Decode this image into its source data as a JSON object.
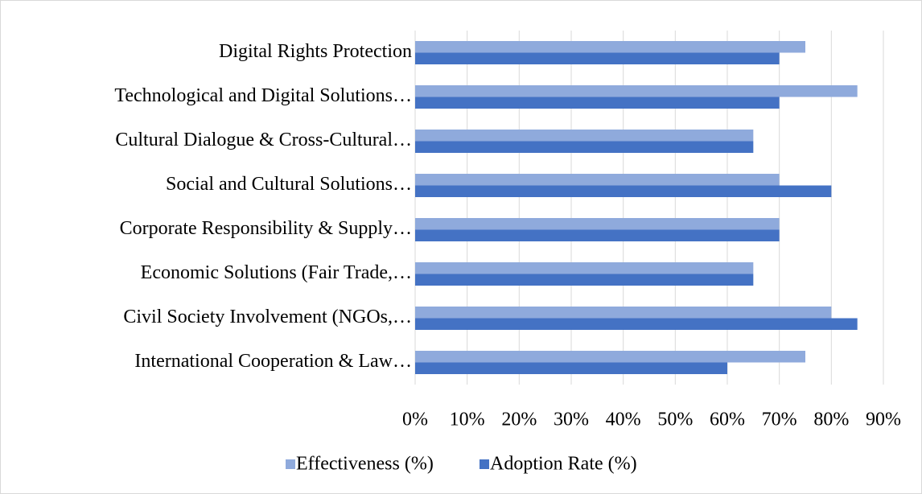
{
  "chart_data": {
    "type": "bar",
    "orientation": "horizontal",
    "categories": [
      "Digital Rights Protection",
      "Technological and Digital Solutions…",
      "Cultural Dialogue & Cross-Cultural…",
      "Social and Cultural Solutions…",
      "Corporate Responsibility & Supply…",
      "Economic Solutions (Fair Trade,…",
      "Civil Society Involvement (NGOs,…",
      "International Cooperation & Law…"
    ],
    "series": [
      {
        "name": "Effectiveness (%)",
        "color": "#8faadc",
        "values": [
          75,
          85,
          65,
          70,
          70,
          65,
          80,
          75
        ]
      },
      {
        "name": "Adoption Rate (%)",
        "color": "#4472c4",
        "values": [
          70,
          70,
          65,
          80,
          70,
          65,
          85,
          60
        ]
      }
    ],
    "xlim": [
      0,
      90
    ],
    "xticks": [
      {
        "value": 0,
        "label": "0%"
      },
      {
        "value": 10,
        "label": "10%"
      },
      {
        "value": 20,
        "label": "20%"
      },
      {
        "value": 30,
        "label": "30%"
      },
      {
        "value": 40,
        "label": "40%"
      },
      {
        "value": 50,
        "label": "50%"
      },
      {
        "value": 60,
        "label": "60%"
      },
      {
        "value": 70,
        "label": "70%"
      },
      {
        "value": 80,
        "label": "80%"
      },
      {
        "value": 90,
        "label": "90%"
      }
    ],
    "grid": true,
    "legend": "bottom"
  }
}
